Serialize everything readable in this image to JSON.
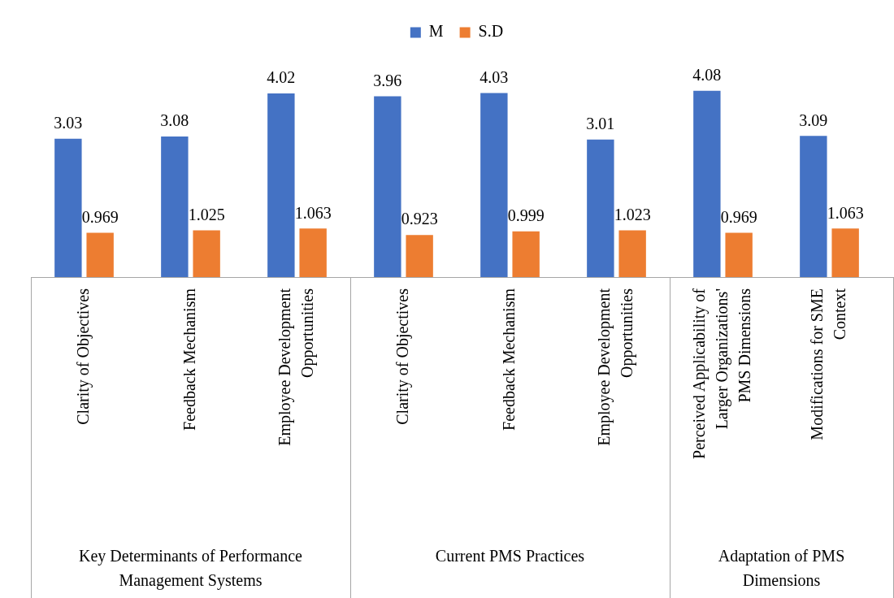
{
  "chart_data": {
    "type": "bar",
    "categories": [
      "Clarity of Objectives",
      "Feedback Mechanism",
      "Employee Development Opportunities",
      "Clarity of Objectives",
      "Feedback Mechanism",
      "Employee Development Opportunities",
      "Perceived Applicability of Larger Organizations' PMS Dimensions",
      "Modifications for SME Context"
    ],
    "series": [
      {
        "name": "M",
        "color": "#4472c4",
        "values": [
          3.03,
          3.08,
          4.02,
          3.96,
          4.03,
          3.01,
          4.08,
          3.09
        ]
      },
      {
        "name": "S.D",
        "color": "#ed7d31",
        "values": [
          0.969,
          1.025,
          1.063,
          0.923,
          0.999,
          1.023,
          0.969,
          1.063
        ]
      }
    ],
    "annotations": [
      "Key Determinants of Performance Management Systems",
      "Current PMS Practices",
      "Adaptation of PMS Dimensions"
    ],
    "data_labels": true,
    "legend": "top",
    "grid": false
  }
}
